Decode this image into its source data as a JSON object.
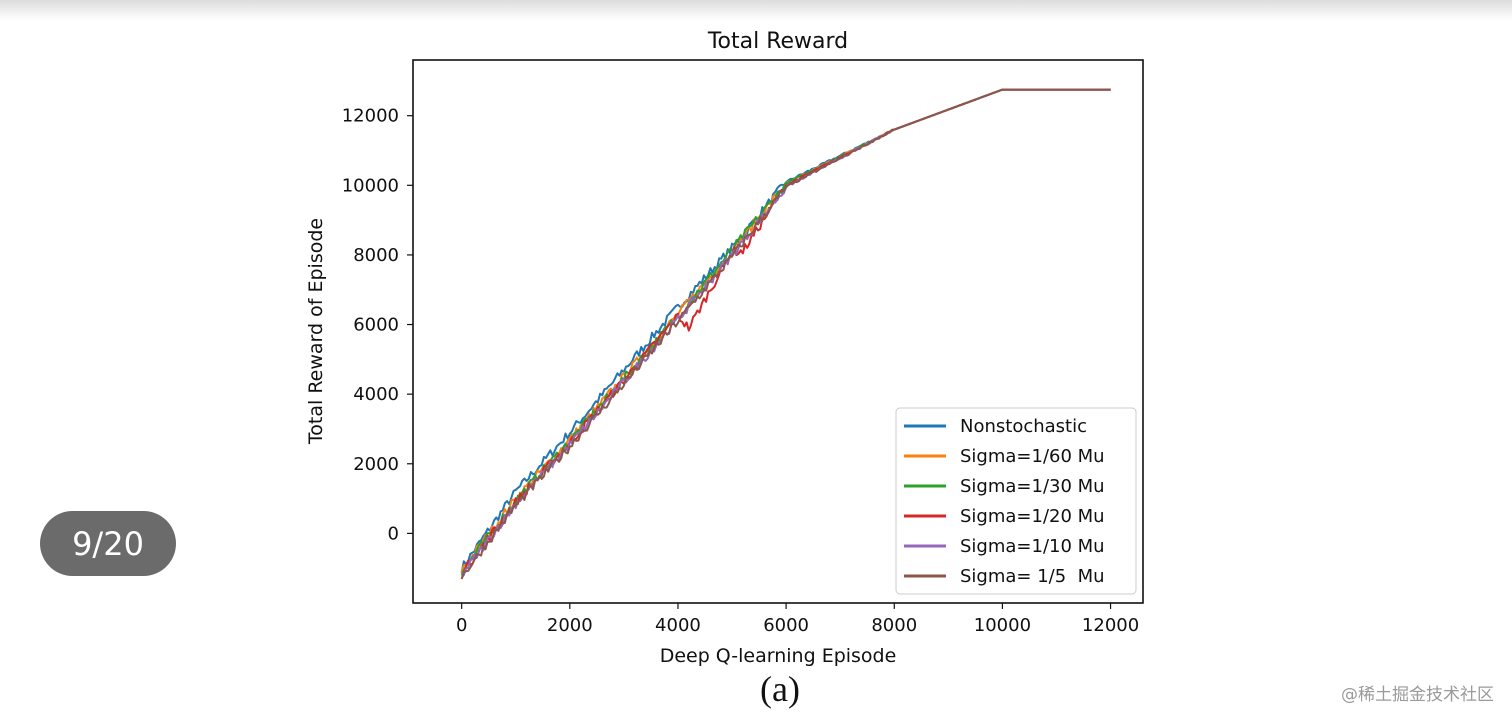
{
  "page_indicator": "9/20",
  "caption": "(a)",
  "watermark": "@稀土掘金技术社区",
  "chart_data": {
    "type": "line",
    "title": "Total Reward",
    "xlabel": "Deep Q-learning Episode",
    "ylabel": "Total Reward of Episode",
    "xlim": [
      -900,
      12600
    ],
    "ylim": [
      -2000,
      13600
    ],
    "xticks": [
      0,
      2000,
      4000,
      6000,
      8000,
      10000,
      12000
    ],
    "yticks": [
      0,
      2000,
      4000,
      6000,
      8000,
      10000,
      12000
    ],
    "legend_position": "bottom-right",
    "series": [
      {
        "name": "Nonstochastic",
        "color": "#1f77b4",
        "x": [
          0,
          1000,
          2000,
          3000,
          4000,
          5000,
          6000,
          8000,
          10000,
          12000
        ],
        "y": [
          -1000,
          1200,
          2900,
          4700,
          6500,
          8200,
          10100,
          11600,
          12750,
          12750
        ]
      },
      {
        "name": "Sigma=1/60 Mu",
        "color": "#ff7f0e",
        "x": [
          0,
          1000,
          2000,
          3000,
          4000,
          5000,
          6000,
          8000,
          10000,
          12000
        ],
        "y": [
          -1050,
          1000,
          2700,
          4500,
          6300,
          8100,
          10050,
          11600,
          12750,
          12750
        ]
      },
      {
        "name": "Sigma=1/30 Mu",
        "color": "#2ca02c",
        "x": [
          0,
          1000,
          2000,
          3000,
          4000,
          5000,
          6000,
          8000,
          10000,
          12000
        ],
        "y": [
          -1100,
          950,
          2650,
          4450,
          6250,
          8150,
          10050,
          11600,
          12750,
          12750
        ]
      },
      {
        "name": "Sigma=1/20 Mu",
        "color": "#d62728",
        "x": [
          0,
          1000,
          2000,
          3000,
          4000,
          4200,
          5000,
          5200,
          6000,
          8000,
          10000,
          12000
        ],
        "y": [
          -1150,
          900,
          2600,
          4400,
          6250,
          5900,
          8100,
          8100,
          10000,
          11600,
          12750,
          12750
        ]
      },
      {
        "name": "Sigma=1/10 Mu",
        "color": "#9467bd",
        "x": [
          0,
          1000,
          2000,
          3000,
          4000,
          5000,
          6000,
          8000,
          10000,
          12000
        ],
        "y": [
          -1200,
          850,
          2550,
          4350,
          6150,
          8000,
          9950,
          11600,
          12750,
          12750
        ]
      },
      {
        "name": "Sigma= 1/5  Mu",
        "color": "#8c564b",
        "x": [
          0,
          1000,
          2000,
          3000,
          4000,
          5000,
          6000,
          8000,
          10000,
          12000
        ],
        "y": [
          -1250,
          800,
          2500,
          4300,
          6100,
          7950,
          9950,
          11600,
          12750,
          12750
        ]
      }
    ]
  }
}
